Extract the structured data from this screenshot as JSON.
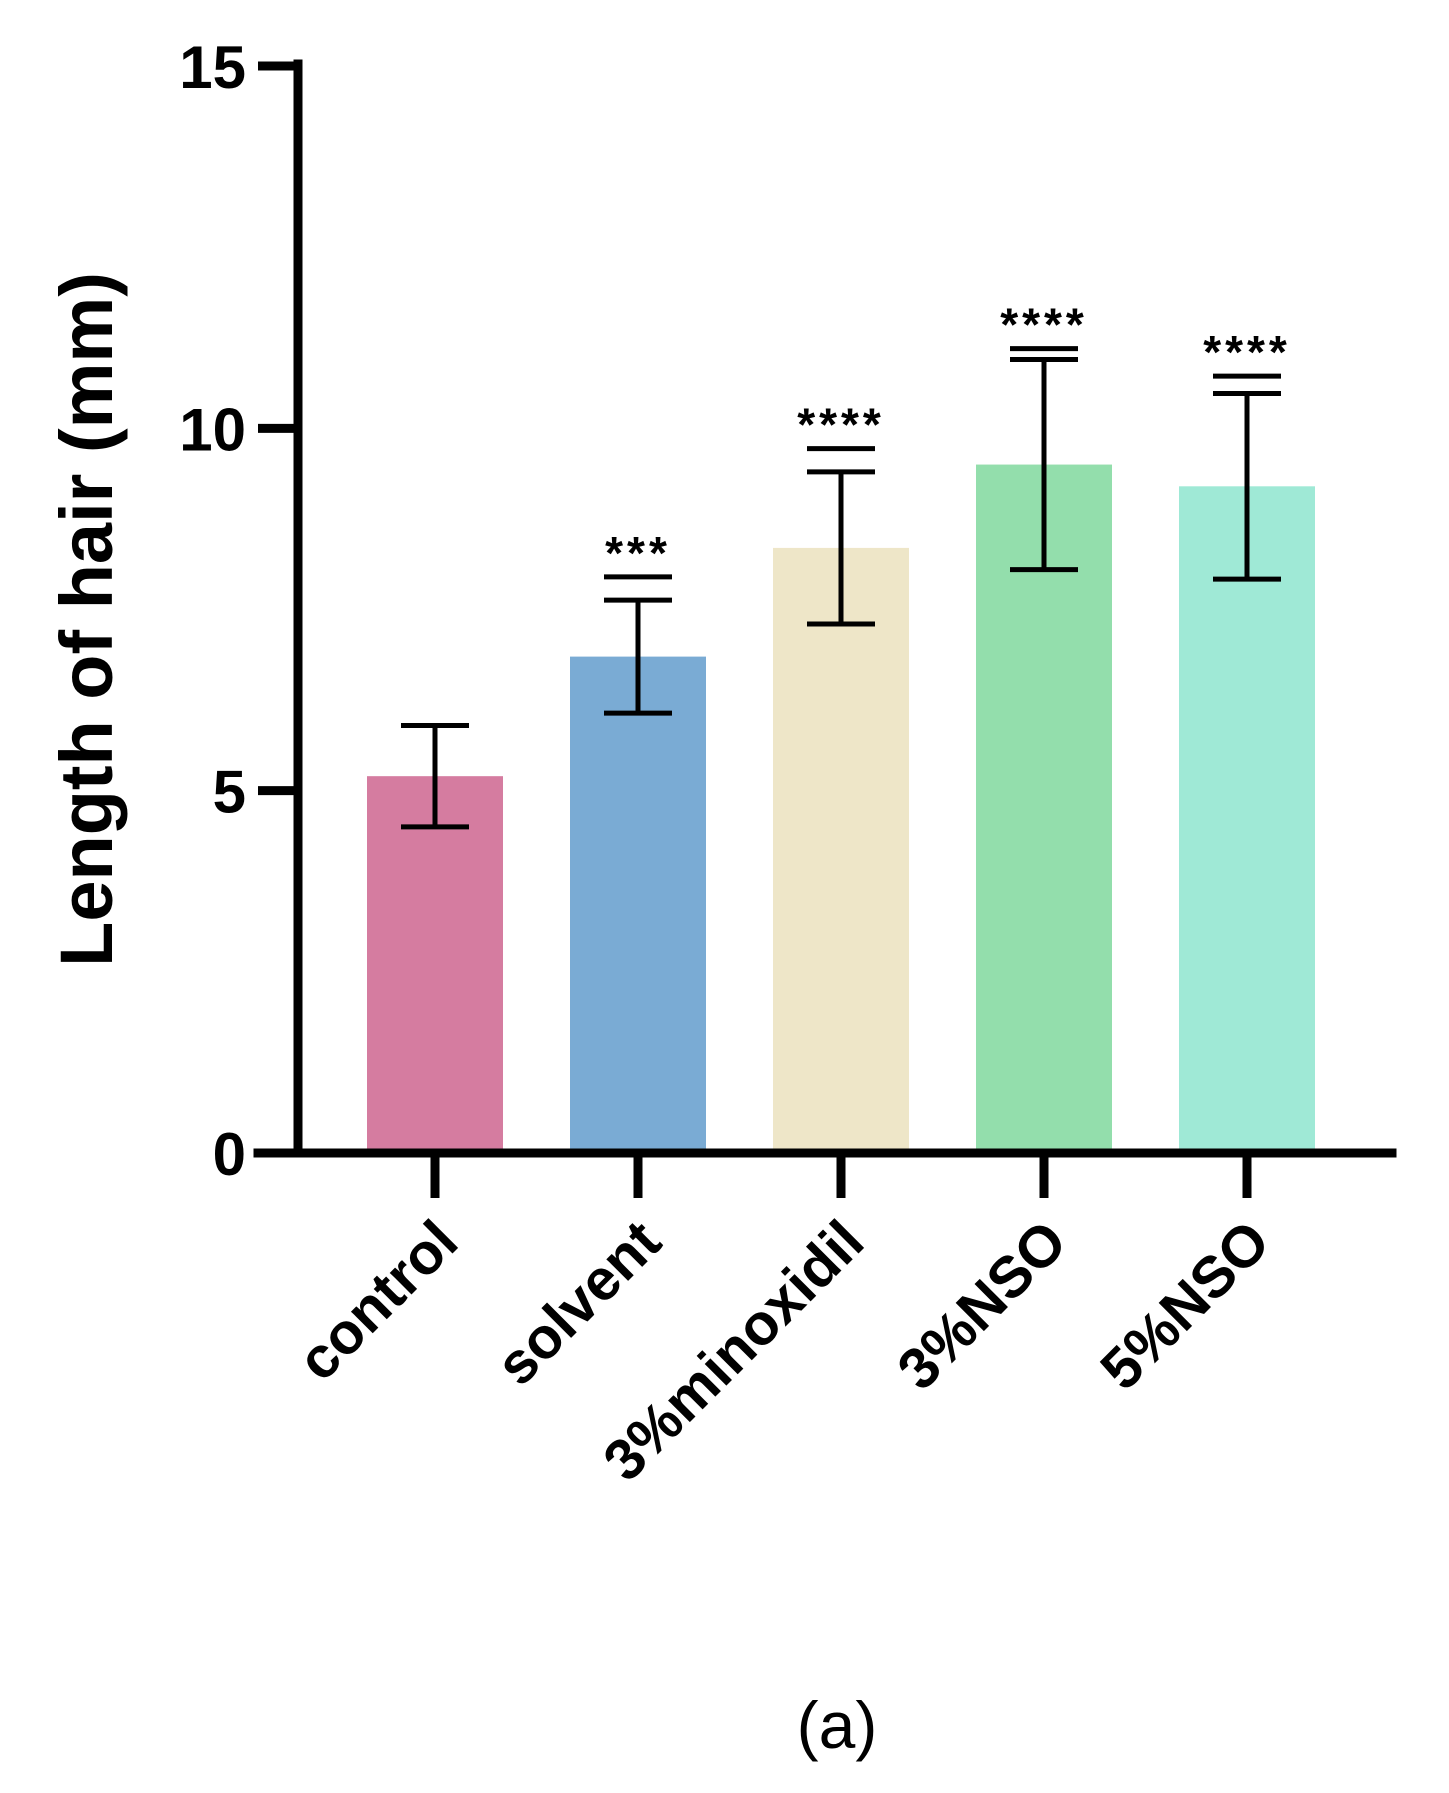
{
  "chart_data": {
    "type": "bar",
    "title": "",
    "xlabel": "",
    "ylabel": "Length of hair (mm)",
    "ylim": [
      0,
      15
    ],
    "yticks": [
      0,
      5,
      10,
      15
    ],
    "ytick_labels": [
      "0",
      "5",
      "10",
      "15"
    ],
    "categories": [
      "control",
      "solvent",
      "3%minoxidil",
      "3%NSO",
      "5%NSO"
    ],
    "values": [
      5.2,
      6.85,
      8.35,
      9.5,
      9.2
    ],
    "error_bars": [
      0.7,
      0.78,
      1.05,
      1.45,
      1.28
    ],
    "significance": [
      "",
      "***",
      "****",
      "****",
      "****"
    ],
    "significance_brackets": [
      null,
      7.95,
      9.72,
      11.1,
      10.72
    ],
    "colors": [
      "#D57CA0",
      "#7AABD4",
      "#EEE6C8",
      "#93DEAC",
      "#9FE9D6"
    ],
    "panel_label": "(a)",
    "grid": false,
    "legend": "none"
  }
}
